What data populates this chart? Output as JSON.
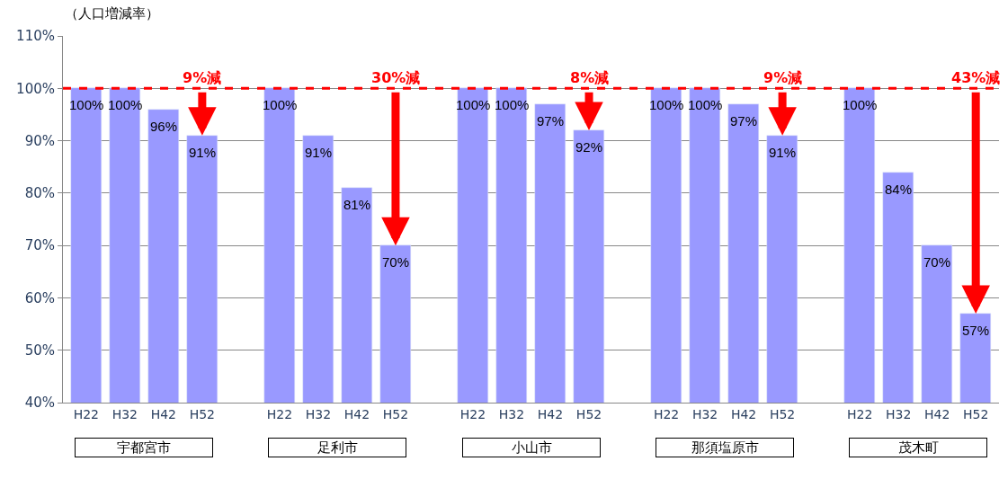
{
  "chart_data": {
    "type": "bar",
    "ylabel": "（人口増減率）",
    "categories": [
      "H22",
      "H32",
      "H42",
      "H52",
      null,
      "H22",
      "H32",
      "H42",
      "H52",
      null,
      "H22",
      "H32",
      "H42",
      "H52",
      null,
      "H22",
      "H32",
      "H42",
      "H52",
      null,
      "H22",
      "H32",
      "H42",
      "H52"
    ],
    "values": [
      100,
      100,
      96,
      91,
      null,
      100,
      91,
      81,
      70,
      null,
      100,
      100,
      97,
      92,
      null,
      100,
      100,
      97,
      91,
      null,
      100,
      84,
      70,
      57
    ],
    "value_labels": [
      "100%",
      "100%",
      "96%",
      "91%",
      null,
      "100%",
      "91%",
      "81%",
      "70%",
      null,
      "100%",
      "100%",
      "97%",
      "92%",
      null,
      "100%",
      "100%",
      "97%",
      "91%",
      null,
      "100%",
      "84%",
      "70%",
      "57%"
    ],
    "color": "#9999ff",
    "ylim": [
      40,
      110
    ],
    "yticks": [
      {
        "value": 40,
        "label": "40%"
      },
      {
        "value": 50,
        "label": "50%"
      },
      {
        "value": 60,
        "label": "60%"
      },
      {
        "value": 70,
        "label": "70%"
      },
      {
        "value": 80,
        "label": "80%"
      },
      {
        "value": 90,
        "label": "90%"
      },
      {
        "value": 100,
        "label": "100%"
      },
      {
        "value": 110,
        "label": "110%"
      }
    ],
    "grid": "y",
    "legend": false,
    "ref_lines": [
      {
        "axis": "y",
        "value": 100,
        "color": "#ff0000",
        "line_style": "dashed"
      }
    ],
    "annotations": [
      "宇都宮市",
      "足利市",
      "小山市",
      "那須塩原市",
      "茂木町",
      {
        "text": "9%減",
        "y": 91
      },
      {
        "text": "30%減",
        "y": 70
      },
      {
        "text": "8%減",
        "y": 92
      },
      {
        "text": "9%減",
        "y": 91
      },
      {
        "text": "43%減",
        "y": 57
      }
    ]
  }
}
